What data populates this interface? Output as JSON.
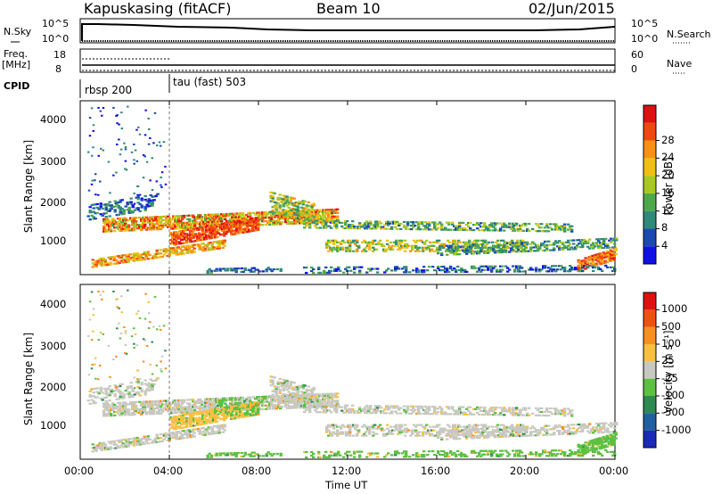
{
  "header": {
    "station": "Kapuskasing (fitACF)",
    "beam": "Beam 10",
    "date": "02/Jun/2015"
  },
  "aux_panels": {
    "nsky_label": "N.Sky",
    "nsky_ticks": [
      "10^5",
      "10^0"
    ],
    "nsearch_label": "N.Search",
    "nsearch_ticks": [
      "10^5",
      "10^0"
    ],
    "freq_label": "Freq.",
    "freq_unit": "[MHz]",
    "freq_ticks": [
      "18",
      "8"
    ],
    "nave_label": "Nave",
    "nave_ticks": [
      "60",
      "0"
    ],
    "cpid_label": "CPID",
    "cpid_segments": [
      {
        "label": "rbsp 200",
        "start_hour": 0
      },
      {
        "label": "tau (fast) 503",
        "start_hour": 4
      }
    ]
  },
  "chart_data": [
    {
      "type": "heatmap",
      "name": "power",
      "ylabel": "Slant Range [km]",
      "ylim": [
        180,
        4600
      ],
      "yticks": [
        1000,
        2000,
        3000,
        4000
      ],
      "xlim": [
        0,
        24
      ],
      "colorbar": {
        "label": "Power [dB]",
        "ticks": [
          "4",
          "8",
          "12",
          "16",
          "20",
          "24",
          "28"
        ],
        "colors": [
          "#1010e8",
          "#1a4ab0",
          "#2f8a7a",
          "#4ea84a",
          "#a8c820",
          "#f0c010",
          "#f89010",
          "#f04810",
          "#e01010"
        ]
      }
    },
    {
      "type": "heatmap",
      "name": "velocity",
      "ylabel": "Slant Range [km]",
      "ylim": [
        180,
        4600
      ],
      "yticks": [
        1000,
        2000,
        3000,
        4000
      ],
      "xlim": [
        0,
        24
      ],
      "xticks": [
        "00:00",
        "04:00",
        "08:00",
        "12:00",
        "16:00",
        "20:00",
        "00:00"
      ],
      "xlabel": "Time UT",
      "colorbar": {
        "label": "Velocity [m s⁻¹]",
        "ticks": [
          "1000",
          "500",
          "100",
          "25",
          "-25",
          "-100",
          "-500",
          "-1000"
        ],
        "colors": [
          "#1a2ab8",
          "#2060a0",
          "#2e8a50",
          "#5cc040",
          "#c8c8c0",
          "#f8c040",
          "#f89020",
          "#f05010",
          "#e01010"
        ]
      }
    }
  ]
}
